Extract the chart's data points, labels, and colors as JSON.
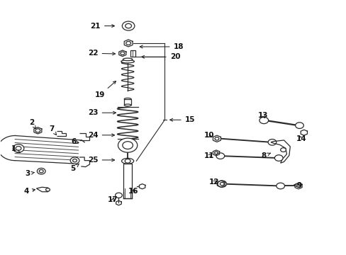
{
  "bg_color": "#ffffff",
  "line_color": "#2a2a2a",
  "figsize": [
    4.89,
    3.6
  ],
  "dpi": 100,
  "label_positions": {
    "1": [
      0.038,
      0.415,
      0.058,
      0.4
    ],
    "2": [
      0.09,
      0.52,
      0.103,
      0.493
    ],
    "3": [
      0.078,
      0.318,
      0.105,
      0.325
    ],
    "4": [
      0.075,
      0.248,
      0.108,
      0.258
    ],
    "5": [
      0.21,
      0.338,
      0.228,
      0.358
    ],
    "6": [
      0.212,
      0.445,
      0.228,
      0.44
    ],
    "7": [
      0.148,
      0.495,
      0.163,
      0.468
    ],
    "8": [
      0.762,
      0.388,
      0.782,
      0.4
    ],
    "9": [
      0.865,
      0.27,
      0.847,
      0.275
    ],
    "10": [
      0.604,
      0.468,
      0.618,
      0.458
    ],
    "11": [
      0.604,
      0.388,
      0.618,
      0.398
    ],
    "12": [
      0.618,
      0.285,
      0.632,
      0.295
    ],
    "13": [
      0.76,
      0.548,
      0.768,
      0.528
    ],
    "14": [
      0.87,
      0.455,
      0.858,
      0.475
    ],
    "15": [
      0.548,
      0.53,
      0.482,
      0.53
    ],
    "16": [
      0.385,
      0.248,
      0.39,
      0.268
    ],
    "17": [
      0.325,
      0.215,
      0.33,
      0.232
    ],
    "18": [
      0.515,
      0.818,
      0.395,
      0.818
    ],
    "19": [
      0.288,
      0.628,
      0.34,
      0.69
    ],
    "20": [
      0.505,
      0.778,
      0.4,
      0.778
    ],
    "21": [
      0.275,
      0.9,
      0.338,
      0.9
    ],
    "22": [
      0.268,
      0.792,
      0.34,
      0.79
    ],
    "23": [
      0.268,
      0.558,
      0.342,
      0.558
    ],
    "24": [
      0.268,
      0.47,
      0.338,
      0.47
    ],
    "25": [
      0.268,
      0.372,
      0.338,
      0.372
    ]
  }
}
